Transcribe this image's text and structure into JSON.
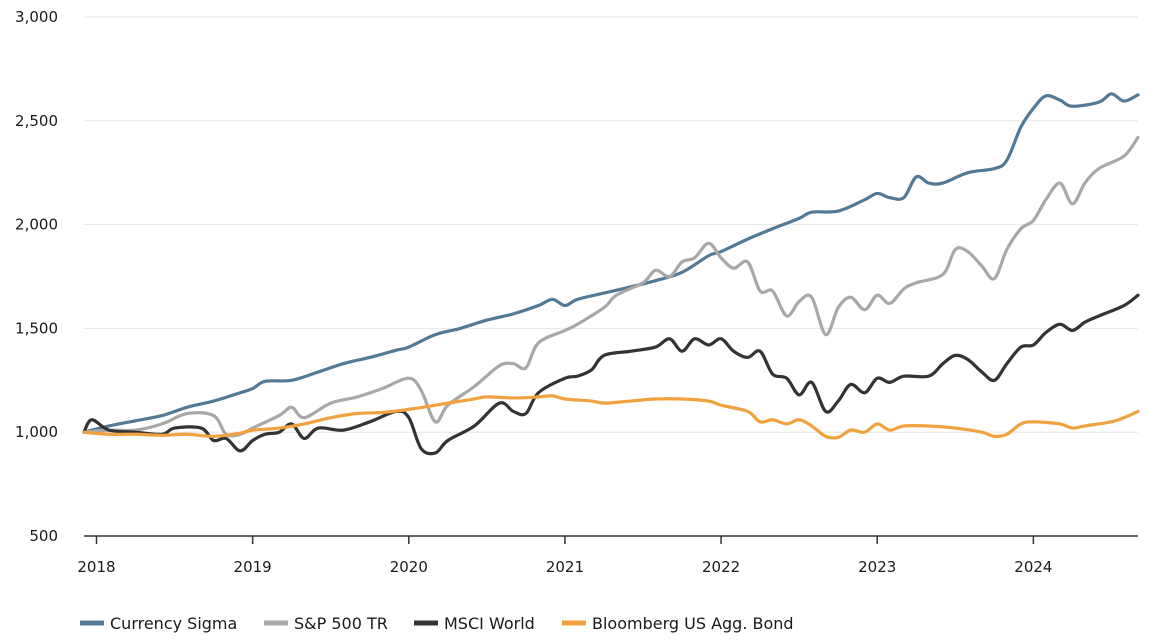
{
  "chart_data": {
    "type": "line",
    "title": "",
    "xlabel": "",
    "ylabel": "",
    "ylim": [
      500,
      3000
    ],
    "xlim": [
      2017.92,
      2024.67
    ],
    "yticks": [
      "3,000",
      "2,500",
      "2,000",
      "1,500",
      "1,000",
      "500"
    ],
    "ytick_values": [
      3000,
      2500,
      2000,
      1500,
      1000,
      500
    ],
    "xticks": [
      "2018",
      "2019",
      "2020",
      "2021",
      "2022",
      "2023",
      "2024"
    ],
    "xtick_values": [
      2018,
      2019,
      2020,
      2021,
      2022,
      2023,
      2024
    ],
    "grid": "horizontal",
    "legend_placement": "bottom-left",
    "series": [
      {
        "name": "Currency Sigma",
        "color": "#527a96",
        "points": [
          [
            2017.92,
            1000
          ],
          [
            2018.08,
            1030
          ],
          [
            2018.25,
            1055
          ],
          [
            2018.42,
            1080
          ],
          [
            2018.58,
            1120
          ],
          [
            2018.75,
            1150
          ],
          [
            2018.92,
            1190
          ],
          [
            2019.0,
            1210
          ],
          [
            2019.08,
            1245
          ],
          [
            2019.25,
            1250
          ],
          [
            2019.42,
            1290
          ],
          [
            2019.58,
            1330
          ],
          [
            2019.75,
            1360
          ],
          [
            2019.92,
            1395
          ],
          [
            2020.0,
            1410
          ],
          [
            2020.17,
            1470
          ],
          [
            2020.33,
            1500
          ],
          [
            2020.5,
            1540
          ],
          [
            2020.67,
            1570
          ],
          [
            2020.83,
            1610
          ],
          [
            2020.92,
            1640
          ],
          [
            2021.0,
            1610
          ],
          [
            2021.08,
            1640
          ],
          [
            2021.25,
            1670
          ],
          [
            2021.42,
            1700
          ],
          [
            2021.58,
            1730
          ],
          [
            2021.75,
            1770
          ],
          [
            2021.92,
            1850
          ],
          [
            2022.0,
            1870
          ],
          [
            2022.17,
            1930
          ],
          [
            2022.33,
            1980
          ],
          [
            2022.5,
            2030
          ],
          [
            2022.58,
            2060
          ],
          [
            2022.75,
            2065
          ],
          [
            2022.92,
            2120
          ],
          [
            2023.0,
            2150
          ],
          [
            2023.08,
            2130
          ],
          [
            2023.17,
            2130
          ],
          [
            2023.25,
            2230
          ],
          [
            2023.33,
            2200
          ],
          [
            2023.42,
            2200
          ],
          [
            2023.58,
            2250
          ],
          [
            2023.75,
            2270
          ],
          [
            2023.83,
            2310
          ],
          [
            2023.92,
            2470
          ],
          [
            2024.0,
            2560
          ],
          [
            2024.08,
            2620
          ],
          [
            2024.17,
            2600
          ],
          [
            2024.25,
            2570
          ],
          [
            2024.42,
            2590
          ],
          [
            2024.5,
            2630
          ],
          [
            2024.58,
            2595
          ],
          [
            2024.67,
            2625
          ]
        ]
      },
      {
        "name": "S&P 500 TR",
        "color": "#a8a8a8",
        "points": [
          [
            2017.92,
            1000
          ],
          [
            2018.08,
            1010
          ],
          [
            2018.25,
            1010
          ],
          [
            2018.42,
            1040
          ],
          [
            2018.58,
            1090
          ],
          [
            2018.75,
            1080
          ],
          [
            2018.83,
            990
          ],
          [
            2018.92,
            990
          ],
          [
            2019.0,
            1020
          ],
          [
            2019.17,
            1080
          ],
          [
            2019.25,
            1120
          ],
          [
            2019.33,
            1070
          ],
          [
            2019.5,
            1140
          ],
          [
            2019.67,
            1170
          ],
          [
            2019.83,
            1210
          ],
          [
            2020.0,
            1260
          ],
          [
            2020.08,
            1200
          ],
          [
            2020.17,
            1050
          ],
          [
            2020.25,
            1130
          ],
          [
            2020.42,
            1220
          ],
          [
            2020.58,
            1320
          ],
          [
            2020.67,
            1330
          ],
          [
            2020.75,
            1310
          ],
          [
            2020.83,
            1430
          ],
          [
            2021.0,
            1490
          ],
          [
            2021.08,
            1520
          ],
          [
            2021.25,
            1600
          ],
          [
            2021.33,
            1660
          ],
          [
            2021.5,
            1720
          ],
          [
            2021.58,
            1780
          ],
          [
            2021.67,
            1750
          ],
          [
            2021.75,
            1820
          ],
          [
            2021.83,
            1840
          ],
          [
            2021.92,
            1910
          ],
          [
            2022.0,
            1840
          ],
          [
            2022.08,
            1790
          ],
          [
            2022.17,
            1820
          ],
          [
            2022.25,
            1680
          ],
          [
            2022.33,
            1680
          ],
          [
            2022.42,
            1560
          ],
          [
            2022.5,
            1630
          ],
          [
            2022.58,
            1650
          ],
          [
            2022.67,
            1470
          ],
          [
            2022.75,
            1600
          ],
          [
            2022.83,
            1650
          ],
          [
            2022.92,
            1590
          ],
          [
            2023.0,
            1660
          ],
          [
            2023.08,
            1620
          ],
          [
            2023.17,
            1690
          ],
          [
            2023.25,
            1720
          ],
          [
            2023.42,
            1760
          ],
          [
            2023.5,
            1880
          ],
          [
            2023.58,
            1870
          ],
          [
            2023.67,
            1800
          ],
          [
            2023.75,
            1740
          ],
          [
            2023.83,
            1880
          ],
          [
            2023.92,
            1980
          ],
          [
            2024.0,
            2020
          ],
          [
            2024.08,
            2120
          ],
          [
            2024.17,
            2200
          ],
          [
            2024.25,
            2100
          ],
          [
            2024.33,
            2200
          ],
          [
            2024.42,
            2270
          ],
          [
            2024.58,
            2330
          ],
          [
            2024.67,
            2420
          ]
        ]
      },
      {
        "name": "MSCI World",
        "color": "#333333",
        "points": [
          [
            2017.92,
            1000
          ],
          [
            2017.97,
            1060
          ],
          [
            2018.08,
            1010
          ],
          [
            2018.25,
            1000
          ],
          [
            2018.42,
            990
          ],
          [
            2018.5,
            1020
          ],
          [
            2018.67,
            1020
          ],
          [
            2018.75,
            960
          ],
          [
            2018.83,
            970
          ],
          [
            2018.92,
            910
          ],
          [
            2019.0,
            960
          ],
          [
            2019.08,
            990
          ],
          [
            2019.17,
            1000
          ],
          [
            2019.25,
            1040
          ],
          [
            2019.33,
            970
          ],
          [
            2019.42,
            1020
          ],
          [
            2019.58,
            1010
          ],
          [
            2019.75,
            1050
          ],
          [
            2019.92,
            1100
          ],
          [
            2020.0,
            1070
          ],
          [
            2020.08,
            920
          ],
          [
            2020.17,
            900
          ],
          [
            2020.25,
            960
          ],
          [
            2020.42,
            1030
          ],
          [
            2020.58,
            1140
          ],
          [
            2020.67,
            1100
          ],
          [
            2020.75,
            1090
          ],
          [
            2020.83,
            1190
          ],
          [
            2021.0,
            1260
          ],
          [
            2021.08,
            1270
          ],
          [
            2021.17,
            1300
          ],
          [
            2021.25,
            1370
          ],
          [
            2021.42,
            1390
          ],
          [
            2021.58,
            1410
          ],
          [
            2021.67,
            1450
          ],
          [
            2021.75,
            1390
          ],
          [
            2021.83,
            1450
          ],
          [
            2021.92,
            1420
          ],
          [
            2022.0,
            1450
          ],
          [
            2022.08,
            1390
          ],
          [
            2022.17,
            1360
          ],
          [
            2022.25,
            1390
          ],
          [
            2022.33,
            1280
          ],
          [
            2022.42,
            1260
          ],
          [
            2022.5,
            1180
          ],
          [
            2022.58,
            1240
          ],
          [
            2022.67,
            1100
          ],
          [
            2022.75,
            1150
          ],
          [
            2022.83,
            1230
          ],
          [
            2022.92,
            1190
          ],
          [
            2023.0,
            1260
          ],
          [
            2023.08,
            1240
          ],
          [
            2023.17,
            1270
          ],
          [
            2023.33,
            1270
          ],
          [
            2023.42,
            1330
          ],
          [
            2023.5,
            1370
          ],
          [
            2023.58,
            1350
          ],
          [
            2023.67,
            1290
          ],
          [
            2023.75,
            1250
          ],
          [
            2023.83,
            1330
          ],
          [
            2023.92,
            1410
          ],
          [
            2024.0,
            1420
          ],
          [
            2024.08,
            1480
          ],
          [
            2024.17,
            1520
          ],
          [
            2024.25,
            1490
          ],
          [
            2024.33,
            1530
          ],
          [
            2024.42,
            1560
          ],
          [
            2024.58,
            1610
          ],
          [
            2024.67,
            1660
          ]
        ]
      },
      {
        "name": "Bloomberg US Agg. Bond",
        "color": "#f0a23e",
        "points": [
          [
            2017.92,
            1000
          ],
          [
            2018.08,
            990
          ],
          [
            2018.25,
            990
          ],
          [
            2018.42,
            985
          ],
          [
            2018.58,
            990
          ],
          [
            2018.75,
            980
          ],
          [
            2018.92,
            995
          ],
          [
            2019.0,
            1010
          ],
          [
            2019.17,
            1020
          ],
          [
            2019.33,
            1040
          ],
          [
            2019.5,
            1070
          ],
          [
            2019.67,
            1090
          ],
          [
            2019.83,
            1095
          ],
          [
            2020.0,
            1110
          ],
          [
            2020.17,
            1130
          ],
          [
            2020.25,
            1140
          ],
          [
            2020.42,
            1160
          ],
          [
            2020.5,
            1170
          ],
          [
            2020.67,
            1165
          ],
          [
            2020.83,
            1170
          ],
          [
            2020.92,
            1175
          ],
          [
            2021.0,
            1160
          ],
          [
            2021.17,
            1150
          ],
          [
            2021.25,
            1140
          ],
          [
            2021.42,
            1150
          ],
          [
            2021.58,
            1160
          ],
          [
            2021.75,
            1160
          ],
          [
            2021.92,
            1150
          ],
          [
            2022.0,
            1130
          ],
          [
            2022.17,
            1100
          ],
          [
            2022.25,
            1050
          ],
          [
            2022.33,
            1060
          ],
          [
            2022.42,
            1040
          ],
          [
            2022.5,
            1060
          ],
          [
            2022.58,
            1030
          ],
          [
            2022.67,
            980
          ],
          [
            2022.75,
            975
          ],
          [
            2022.83,
            1010
          ],
          [
            2022.92,
            1000
          ],
          [
            2023.0,
            1040
          ],
          [
            2023.08,
            1010
          ],
          [
            2023.17,
            1030
          ],
          [
            2023.33,
            1030
          ],
          [
            2023.5,
            1020
          ],
          [
            2023.67,
            1000
          ],
          [
            2023.75,
            980
          ],
          [
            2023.83,
            990
          ],
          [
            2023.92,
            1040
          ],
          [
            2024.0,
            1050
          ],
          [
            2024.17,
            1040
          ],
          [
            2024.25,
            1020
          ],
          [
            2024.33,
            1030
          ],
          [
            2024.5,
            1050
          ],
          [
            2024.58,
            1070
          ],
          [
            2024.67,
            1100
          ]
        ]
      }
    ]
  }
}
